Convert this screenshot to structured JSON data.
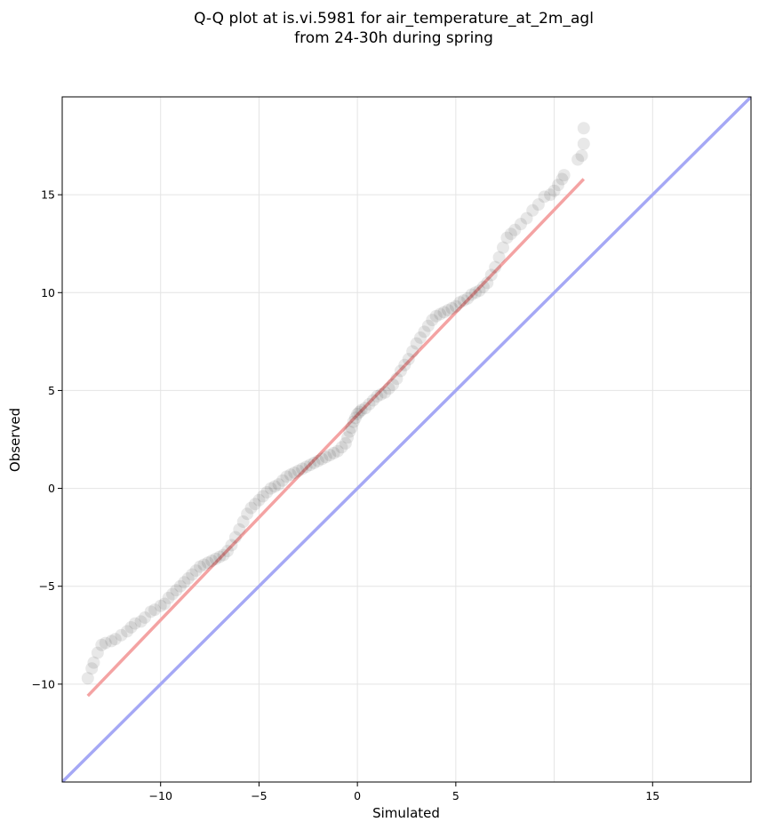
{
  "chart_data": {
    "type": "scatter",
    "title": [
      "Q-Q plot at is.vi.5981 for air_temperature_at_2m_agl",
      "from 24-30h during spring"
    ],
    "xlabel": "Simulated",
    "ylabel": "Observed",
    "xlim": [
      -15,
      20
    ],
    "ylim": [
      -15,
      20
    ],
    "xticks": [
      -10,
      -5,
      0,
      5,
      15
    ],
    "xtick_labels": [
      "−10",
      "−5",
      "0",
      "5",
      "15"
    ],
    "yticks": [
      -10,
      -5,
      0,
      5,
      10,
      15
    ],
    "ytick_labels": [
      "−10",
      "−5",
      "0",
      "5",
      "10",
      "15"
    ],
    "grid": true,
    "point_color": "#000000",
    "quantile_points": {
      "x": [
        -13.7,
        -13.5,
        -13.4,
        -13.2,
        -13.0,
        -12.8,
        -12.5,
        -12.3,
        -12.0,
        -11.7,
        -11.5,
        -11.3,
        -11.0,
        -10.8,
        -10.5,
        -10.3,
        -10.0,
        -9.8,
        -9.6,
        -9.4,
        -9.2,
        -9.0,
        -8.8,
        -8.6,
        -8.4,
        -8.2,
        -8.0,
        -7.8,
        -7.6,
        -7.4,
        -7.2,
        -7.0,
        -6.8,
        -6.6,
        -6.4,
        -6.2,
        -6.0,
        -5.8,
        -5.6,
        -5.4,
        -5.2,
        -5.0,
        -4.8,
        -4.6,
        -4.4,
        -4.2,
        -4.0,
        -3.8,
        -3.6,
        -3.4,
        -3.2,
        -3.0,
        -2.8,
        -2.6,
        -2.4,
        -2.2,
        -2.0,
        -1.8,
        -1.6,
        -1.4,
        -1.2,
        -1.0,
        -0.8,
        -0.6,
        -0.5,
        -0.4,
        -0.3,
        -0.2,
        -0.1,
        0.0,
        0.1,
        0.2,
        0.4,
        0.6,
        0.8,
        1.0,
        1.2,
        1.4,
        1.6,
        1.8,
        2.0,
        2.2,
        2.4,
        2.6,
        2.8,
        3.0,
        3.2,
        3.4,
        3.6,
        3.8,
        4.0,
        4.2,
        4.4,
        4.6,
        4.8,
        5.0,
        5.2,
        5.4,
        5.6,
        5.8,
        6.0,
        6.2,
        6.4,
        6.6,
        6.8,
        7.0,
        7.2,
        7.4,
        7.6,
        7.8,
        8.0,
        8.3,
        8.6,
        8.9,
        9.2,
        9.5,
        9.8,
        10.0,
        10.2,
        10.4,
        10.5,
        11.2,
        11.4,
        11.5,
        11.5
      ],
      "y": [
        -9.7,
        -9.2,
        -8.9,
        -8.4,
        -8.0,
        -7.9,
        -7.8,
        -7.7,
        -7.5,
        -7.3,
        -7.1,
        -6.9,
        -6.8,
        -6.6,
        -6.3,
        -6.2,
        -6.0,
        -5.9,
        -5.6,
        -5.4,
        -5.2,
        -5.0,
        -4.8,
        -4.6,
        -4.4,
        -4.2,
        -4.0,
        -3.9,
        -3.8,
        -3.7,
        -3.6,
        -3.5,
        -3.4,
        -3.2,
        -2.9,
        -2.5,
        -2.1,
        -1.7,
        -1.3,
        -1.0,
        -0.8,
        -0.6,
        -0.4,
        -0.2,
        0.0,
        0.1,
        0.2,
        0.4,
        0.6,
        0.7,
        0.8,
        0.9,
        1.0,
        1.1,
        1.2,
        1.3,
        1.4,
        1.5,
        1.6,
        1.7,
        1.8,
        1.9,
        2.1,
        2.3,
        2.6,
        2.9,
        3.1,
        3.4,
        3.6,
        3.8,
        3.9,
        4.0,
        4.1,
        4.3,
        4.5,
        4.7,
        4.8,
        4.9,
        5.1,
        5.3,
        5.6,
        6.0,
        6.3,
        6.6,
        7.0,
        7.4,
        7.7,
        8.0,
        8.3,
        8.6,
        8.8,
        8.9,
        9.0,
        9.1,
        9.2,
        9.3,
        9.5,
        9.6,
        9.7,
        9.9,
        10.0,
        10.1,
        10.3,
        10.5,
        10.9,
        11.3,
        11.8,
        12.3,
        12.8,
        13.0,
        13.2,
        13.5,
        13.8,
        14.2,
        14.5,
        14.9,
        15.0,
        15.2,
        15.5,
        15.8,
        16.0,
        16.8,
        17.0,
        17.6,
        18.4
      ]
    },
    "fit_line": {
      "x": [
        -13.7,
        11.5
      ],
      "y": [
        -10.6,
        15.8
      ],
      "color": "#f4a3a3"
    },
    "reference_line": {
      "x": [
        -15,
        20
      ],
      "y": [
        -15,
        20
      ],
      "color": "#a5a8f5"
    }
  }
}
